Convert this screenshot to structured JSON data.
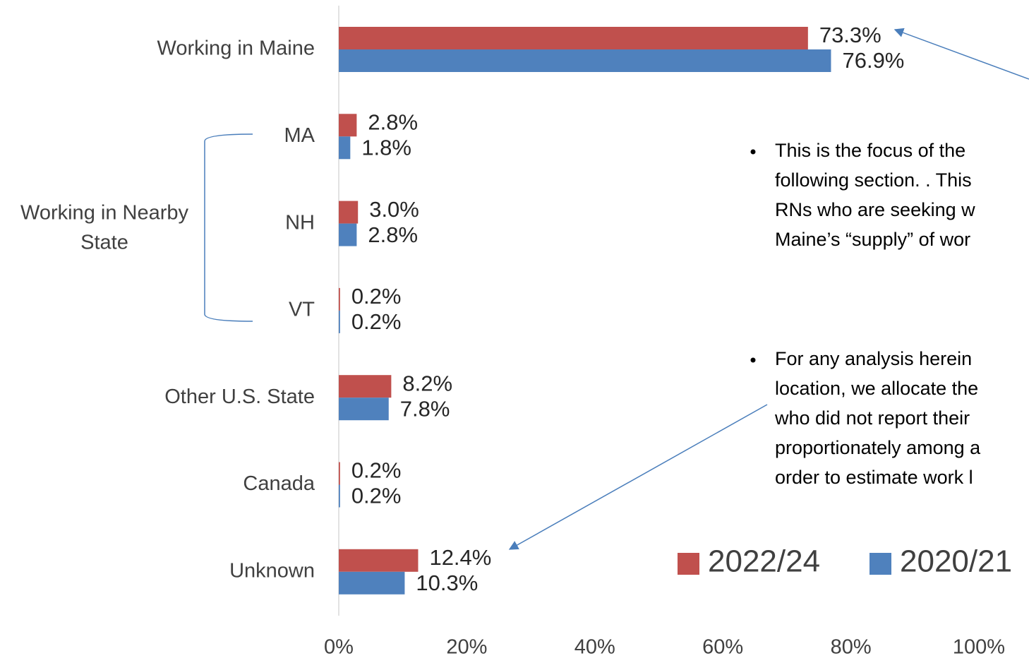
{
  "chart_data": {
    "type": "bar",
    "orientation": "horizontal",
    "categories": [
      "Working in Maine",
      "MA",
      "NH",
      "VT",
      "Other U.S. State",
      "Canada",
      "Unknown"
    ],
    "series": [
      {
        "name": "2022/24",
        "color": "#c0504d",
        "values": [
          73.3,
          2.8,
          3.0,
          0.2,
          8.2,
          0.2,
          12.4
        ],
        "value_labels": [
          "73.3%",
          "2.8%",
          "3.0%",
          "0.2%",
          "8.2%",
          "0.2%",
          "12.4%"
        ]
      },
      {
        "name": "2020/21",
        "color": "#4f81bd",
        "values": [
          76.9,
          1.8,
          2.8,
          0.2,
          7.8,
          0.2,
          10.3
        ],
        "value_labels": [
          "76.9%",
          "1.8%",
          "2.8%",
          "0.2%",
          "7.8%",
          "0.2%",
          "10.3%"
        ]
      }
    ],
    "xlim": [
      0,
      100
    ],
    "xticks": [
      {
        "value": 0,
        "label": "0%"
      },
      {
        "value": 20,
        "label": "20%"
      },
      {
        "value": 40,
        "label": "40%"
      },
      {
        "value": 60,
        "label": "60%"
      },
      {
        "value": 80,
        "label": "80%"
      },
      {
        "value": 100,
        "label": "100%"
      }
    ],
    "group_label": [
      "Working in Nearby",
      "State"
    ],
    "annotations": [
      [
        "This is the focus of the",
        "following section. .  This",
        "RNs who are seeking w",
        "Maine’s “supply” of wor"
      ],
      [
        "For any analysis herein",
        "location, we allocate the",
        "who did not report their",
        "proportionately among a",
        "order to estimate work l"
      ]
    ],
    "legend": "bottom-right"
  }
}
